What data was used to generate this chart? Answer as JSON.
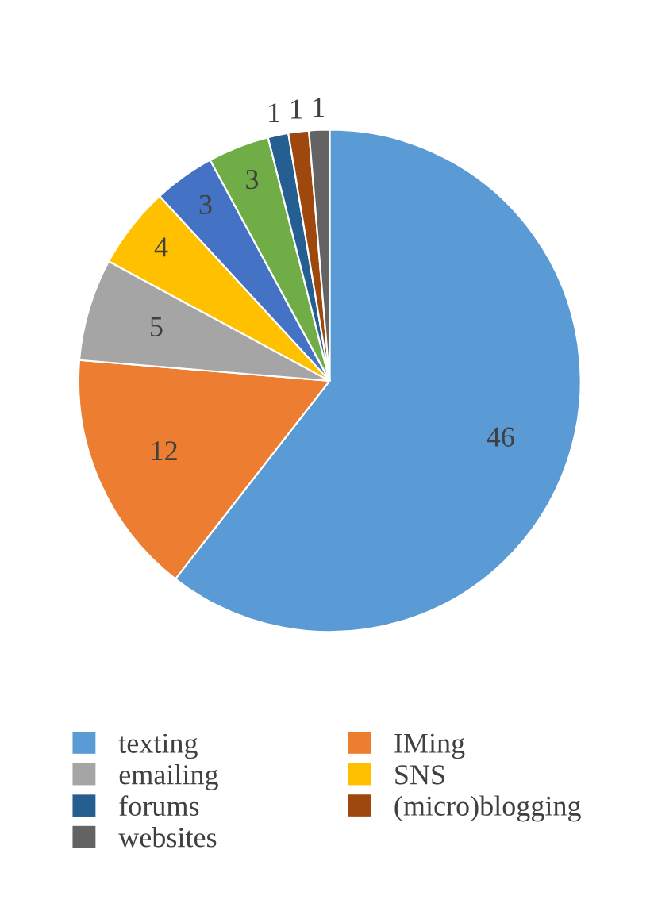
{
  "chart_data": {
    "type": "pie",
    "categories": [
      "texting",
      "IMing",
      "emailing",
      "SNS",
      null,
      null,
      "forums",
      "(micro)blogging",
      "websites"
    ],
    "values": [
      46,
      12,
      5,
      4,
      3,
      3,
      1,
      1,
      1
    ],
    "colors": [
      "#5b9bd5",
      "#ed7d31",
      "#a5a5a5",
      "#ffc000",
      "#4472c4",
      "#70ad47",
      "#255e91",
      "#9e480e",
      "#636363"
    ],
    "data_labels": true,
    "legend": "bottom"
  }
}
